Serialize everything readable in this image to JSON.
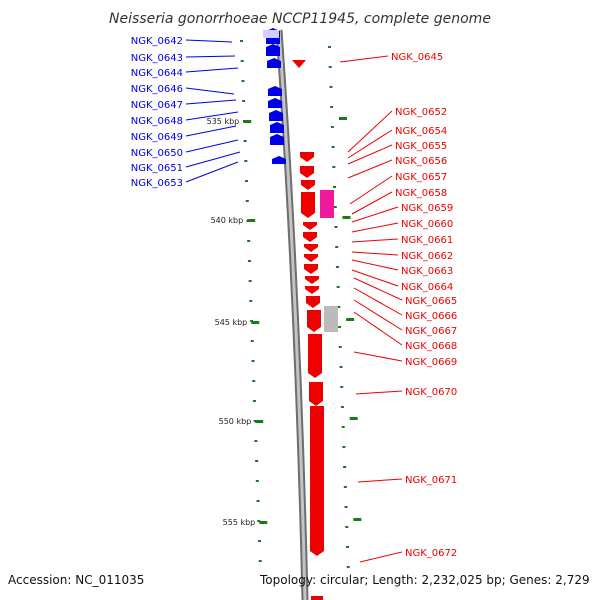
{
  "title": "Neisseria gonorrhoeae NCCP11945, complete genome",
  "footer": {
    "accession": "Accession: NC_011035",
    "stats": "Topology: circular; Length: 2,232,025 bp; Genes: 2,729"
  },
  "colors": {
    "forward_gene": "#0000e8",
    "reverse_gene": "#ee0000",
    "rrna_gene": "#ee1a9a",
    "pseudo_gene": "#bbbbbb",
    "backbone": "#909090",
    "tick": "#1a7a1a"
  },
  "kbp_ticks": [
    "535 kbp",
    "540 kbp",
    "545 kbp",
    "550 kbp",
    "555 kbp"
  ],
  "left_labels": [
    "NGK_0642",
    "NGK_0643",
    "NGK_0644",
    "NGK_0646",
    "NGK_0647",
    "NGK_0648",
    "NGK_0649",
    "NGK_0650",
    "NGK_0651",
    "NGK_0653"
  ],
  "right_labels": [
    "NGK_0645",
    "NGK_0652",
    "NGK_0654",
    "NGK_0655",
    "NGK_0656",
    "NGK_0657",
    "NGK_0658",
    "NGK_0659",
    "NGK_0660",
    "NGK_0661",
    "NGK_0662",
    "NGK_0663",
    "NGK_0664",
    "NGK_0665",
    "NGK_0666",
    "NGK_0667",
    "NGK_0668",
    "NGK_0669",
    "NGK_0670",
    "NGK_0671",
    "NGK_0672"
  ]
}
